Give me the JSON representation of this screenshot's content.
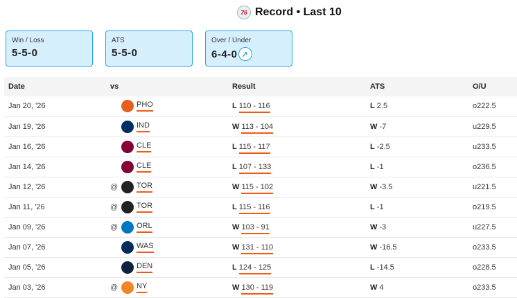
{
  "header": {
    "title": "Record • Last 10",
    "team_logo": "76ers-logo"
  },
  "summary": [
    {
      "label": "Win / Loss",
      "value": "5-5-0"
    },
    {
      "label": "ATS",
      "value": "5-5-0"
    },
    {
      "label": "Over / Under",
      "value": "6-4-0",
      "icon": "trend-up-icon"
    }
  ],
  "table": {
    "headers": [
      "Date",
      "vs",
      "Result",
      "ATS",
      "O/U"
    ],
    "rows": [
      {
        "date": "Jan 20, '26",
        "at": "",
        "team": "PHO",
        "color": "#e56020",
        "res": "L",
        "score": "110 - 116",
        "ats_res": "L",
        "ats": "2.5",
        "ou": "o222.5"
      },
      {
        "date": "Jan 19, '26",
        "at": "",
        "team": "IND",
        "color": "#002d62",
        "res": "W",
        "score": "113 - 104",
        "ats_res": "W",
        "ats": "-7",
        "ou": "u229.5"
      },
      {
        "date": "Jan 16, '26",
        "at": "",
        "team": "CLE",
        "color": "#860038",
        "res": "L",
        "score": "115 - 117",
        "ats_res": "L",
        "ats": "-2.5",
        "ou": "u233.5"
      },
      {
        "date": "Jan 14, '26",
        "at": "",
        "team": "CLE",
        "color": "#860038",
        "res": "L",
        "score": "107 - 133",
        "ats_res": "L",
        "ats": "-1",
        "ou": "o236.5"
      },
      {
        "date": "Jan 12, '26",
        "at": "@",
        "team": "TOR",
        "color": "#222222",
        "res": "W",
        "score": "115 - 102",
        "ats_res": "W",
        "ats": "-3.5",
        "ou": "u221.5"
      },
      {
        "date": "Jan 11, '26",
        "at": "@",
        "team": "TOR",
        "color": "#222222",
        "res": "L",
        "score": "115 - 116",
        "ats_res": "L",
        "ats": "-1",
        "ou": "o219.5"
      },
      {
        "date": "Jan 09, '26",
        "at": "@",
        "team": "ORL",
        "color": "#0077c0",
        "res": "W",
        "score": "103 - 91",
        "ats_res": "W",
        "ats": "-3",
        "ou": "u227.5"
      },
      {
        "date": "Jan 07, '26",
        "at": "",
        "team": "WAS",
        "color": "#002b5c",
        "res": "W",
        "score": "131 - 110",
        "ats_res": "W",
        "ats": "-16.5",
        "ou": "o233.5"
      },
      {
        "date": "Jan 05, '26",
        "at": "",
        "team": "DEN",
        "color": "#0e2240",
        "res": "L",
        "score": "124 - 125",
        "ats_res": "L",
        "ats": "-14.5",
        "ou": "o228.5"
      },
      {
        "date": "Jan 03, '26",
        "at": "@",
        "team": "NY",
        "color": "#f58426",
        "res": "W",
        "score": "130 - 119",
        "ats_res": "W",
        "ats": "4",
        "ou": "o233.5"
      }
    ]
  }
}
